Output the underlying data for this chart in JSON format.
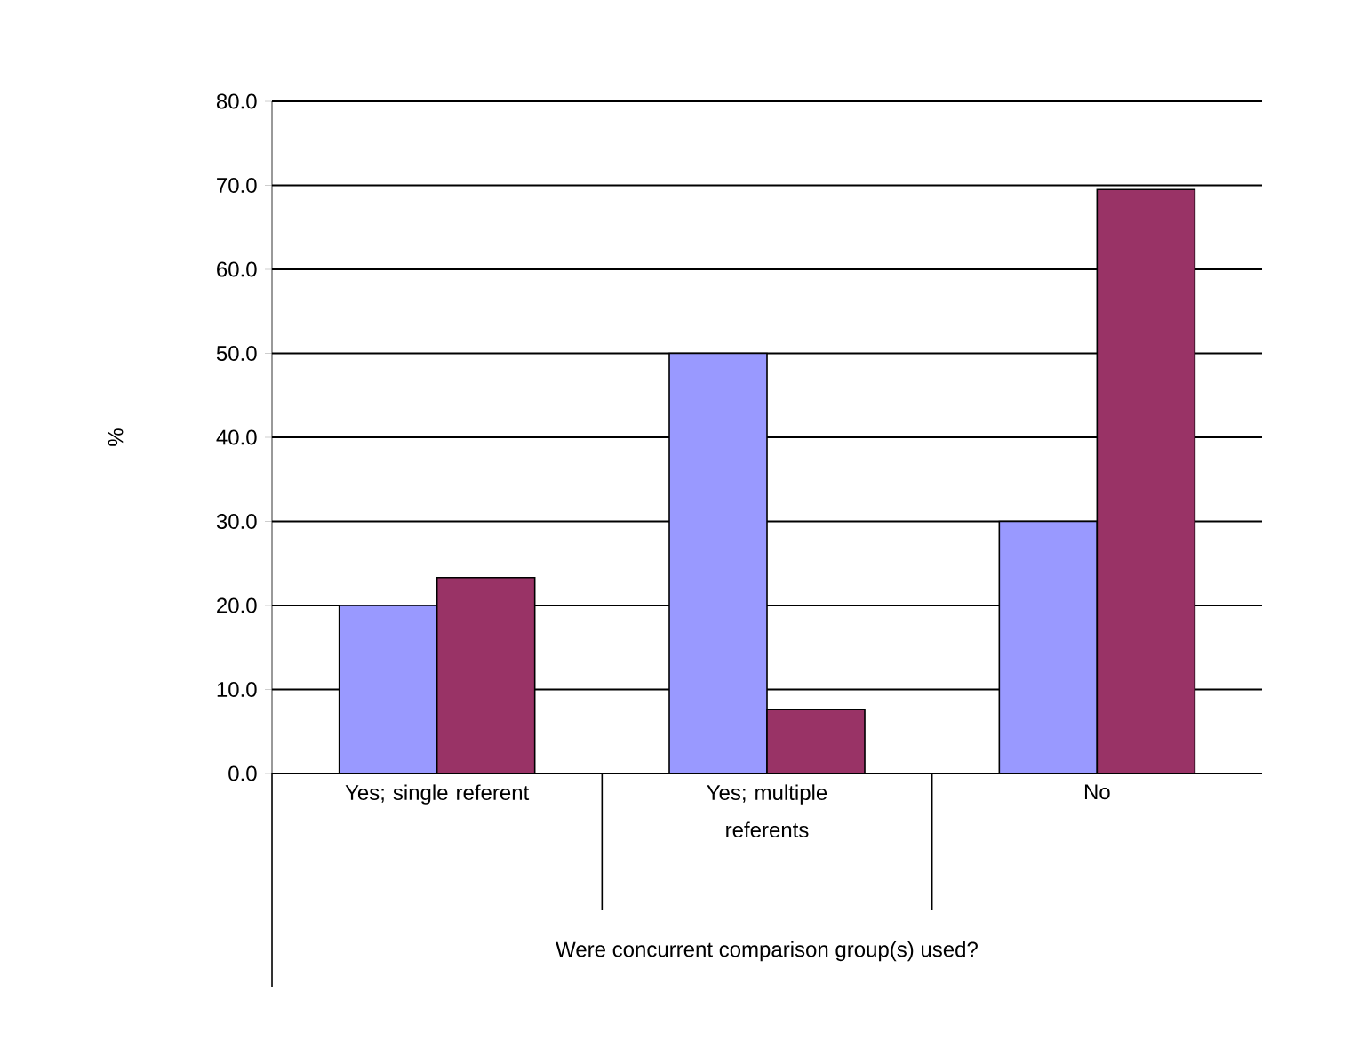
{
  "chart_data": {
    "type": "bar",
    "xlabel": "Were concurrent comparison group(s) used?",
    "ylabel": "%",
    "categories": [
      "Yes; single referent",
      "Yes; multiple referents",
      "No"
    ],
    "series": [
      {
        "color": "#9999ff",
        "values": [
          20,
          50,
          30
        ]
      },
      {
        "color": "#993366",
        "values": [
          23.3,
          7.6,
          69.5
        ]
      }
    ],
    "ylim": [
      0,
      80
    ],
    "yticks": [
      {
        "value": 0,
        "label": "0.0"
      },
      {
        "value": 10,
        "label": "10.0"
      },
      {
        "value": 20,
        "label": "20.0"
      },
      {
        "value": 30,
        "label": "30.0"
      },
      {
        "value": 40,
        "label": "40.0"
      },
      {
        "value": 50,
        "label": "50.0"
      },
      {
        "value": 60,
        "label": "60.0"
      },
      {
        "value": 70,
        "label": "70.0"
      },
      {
        "value": 80,
        "label": "80.0"
      }
    ],
    "grid": "y"
  }
}
